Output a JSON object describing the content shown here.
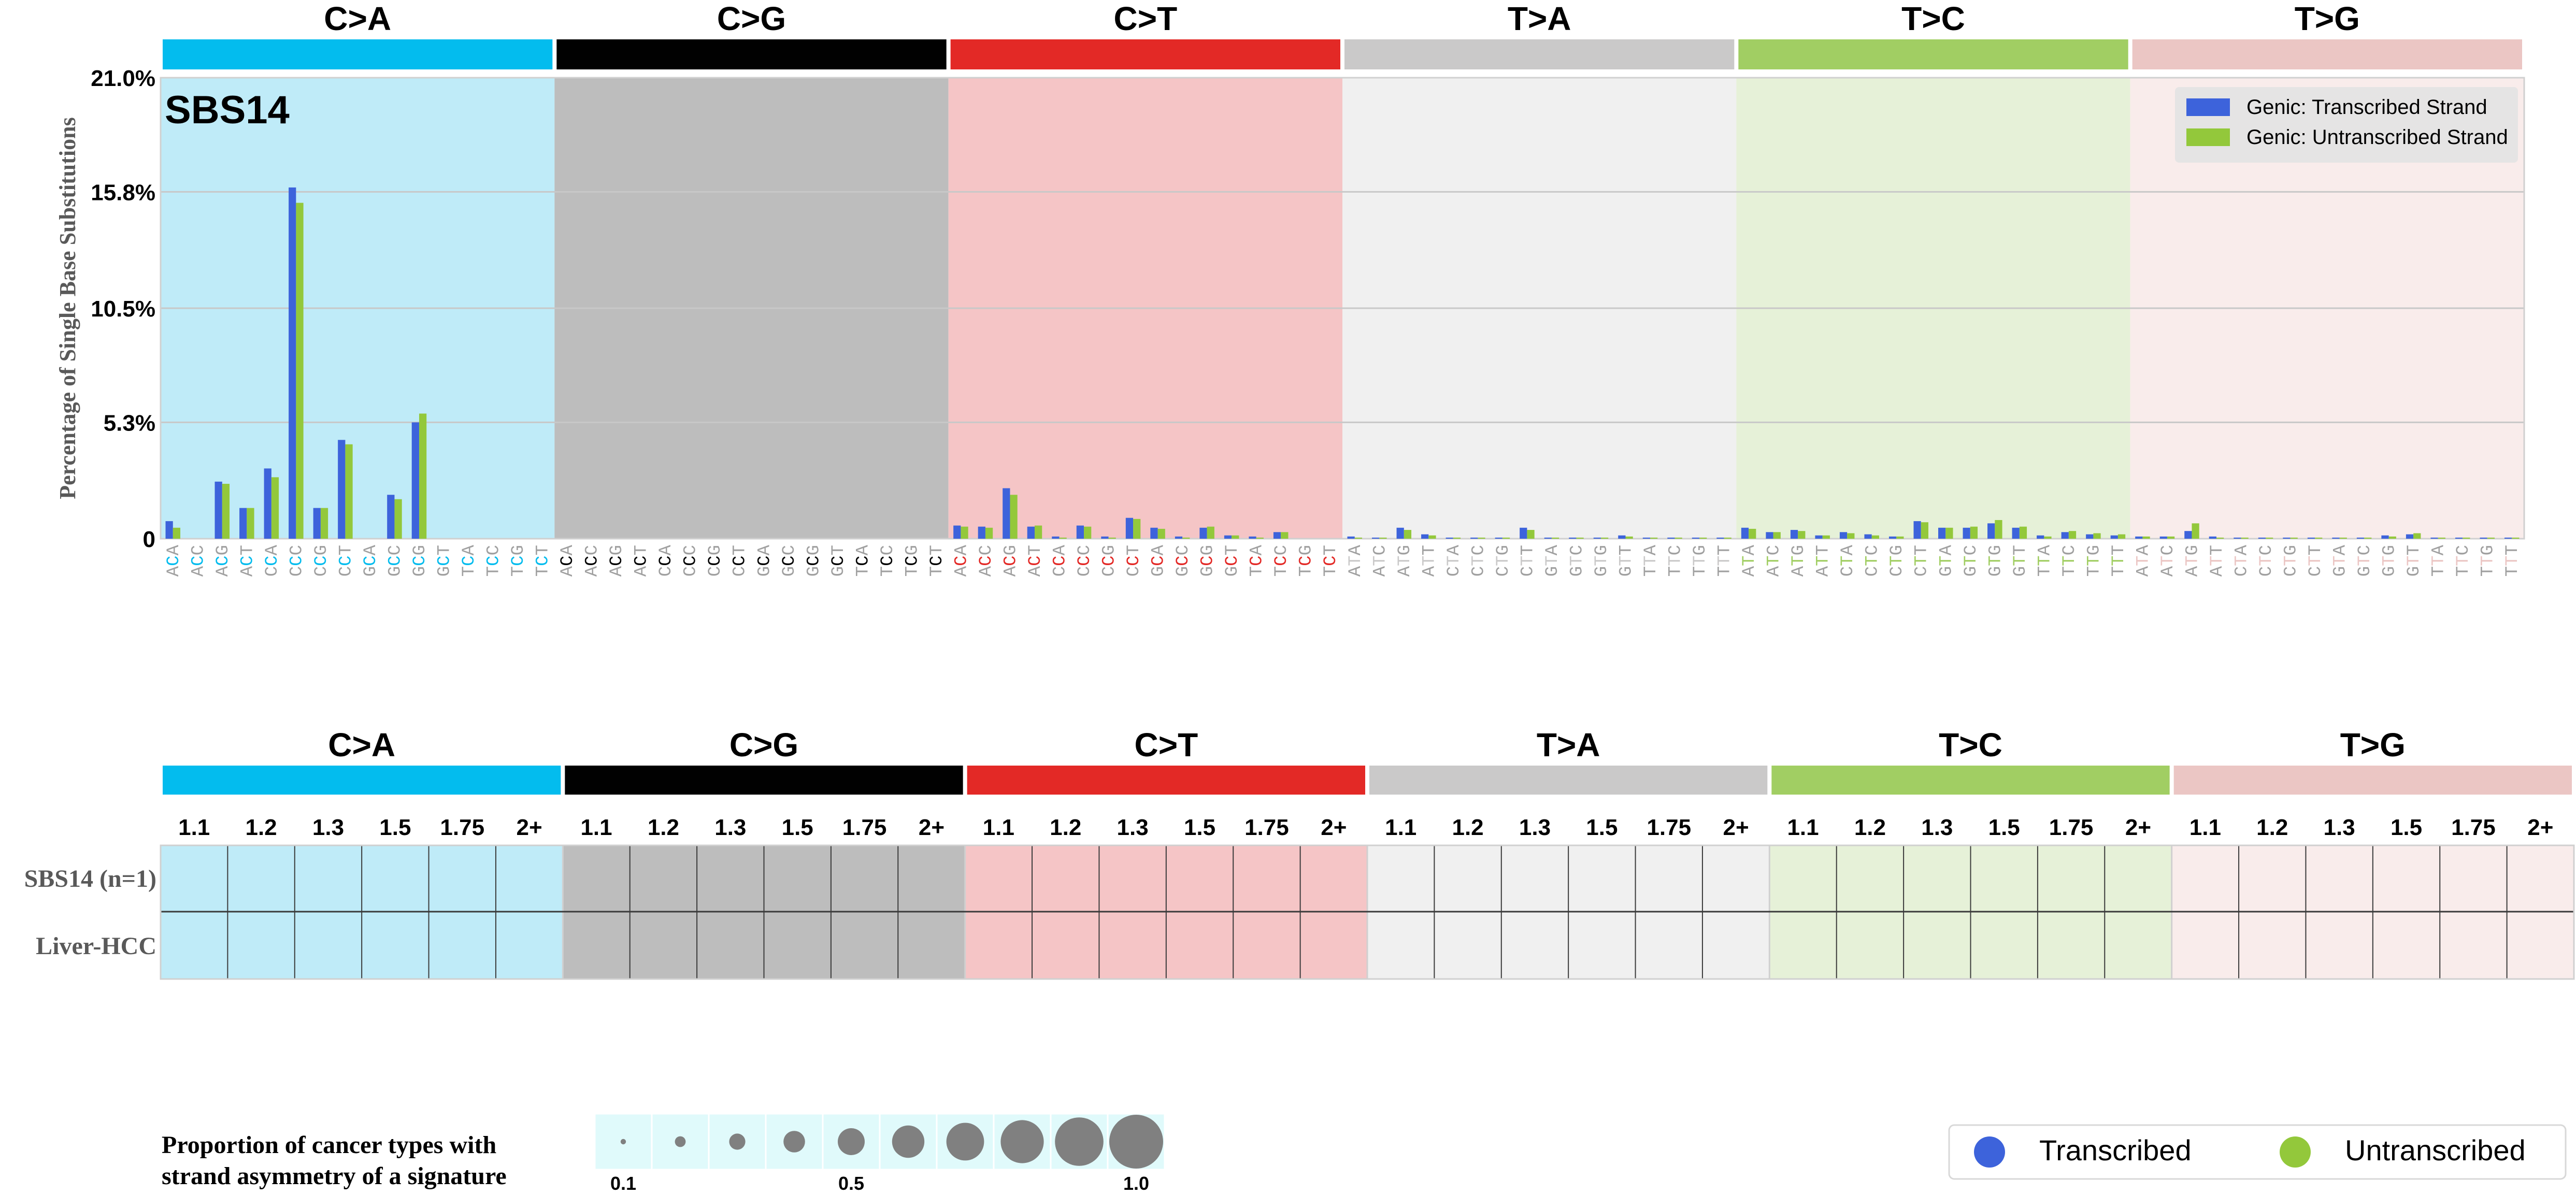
{
  "colors": {
    "mutation_types": [
      "#03BCEE",
      "#010101",
      "#E32926",
      "#CAC9C9",
      "#A1CE63",
      "#EBC6C4"
    ],
    "panel_backgrounds": [
      "#BFEBF8",
      "#BDBDBD",
      "#F5C5C6",
      "#F0F0F0",
      "#E6F1D8",
      "#F9ECEB"
    ],
    "transcribed": "#3D63DB",
    "untranscribed": "#93C83B",
    "grid": "#C8C8C8",
    "bubble": "#808080",
    "scale_bg": "#E0FAFB"
  },
  "chart_data": [
    {
      "type": "bar",
      "title": "SBS14",
      "ylabel": "Percentage of Single Base Substitutions",
      "ylim": [
        0,
        21.0
      ],
      "yticks": [
        "0",
        "5.3%",
        "10.5%",
        "15.8%",
        "21.0%"
      ],
      "ytick_values": [
        0,
        5.3,
        10.5,
        15.8,
        21.0
      ],
      "grid": true,
      "legend_position": "top-right",
      "mutation_types": [
        "C>A",
        "C>G",
        "C>T",
        "T>A",
        "T>C",
        "T>G"
      ],
      "x_labels": [
        "ACA",
        "ACC",
        "ACG",
        "ACT",
        "CCA",
        "CCC",
        "CCG",
        "CCT",
        "GCA",
        "GCC",
        "GCG",
        "GCT",
        "TCA",
        "TCC",
        "TCG",
        "TCT"
      ],
      "x_labels_T": [
        "ATA",
        "ATC",
        "ATG",
        "ATT",
        "CTA",
        "CTC",
        "CTG",
        "CTT",
        "GTA",
        "GTC",
        "GTG",
        "GTT",
        "TTA",
        "TTC",
        "TTG",
        "TTT"
      ],
      "series": [
        {
          "name": "Genic: Transcribed Strand",
          "values": [
            0.8,
            0.0,
            2.6,
            1.4,
            3.2,
            16.0,
            1.4,
            4.5,
            0.0,
            2.0,
            5.3,
            0.0,
            0.0,
            0.0,
            0.0,
            0.0,
            0,
            0,
            0,
            0,
            0,
            0,
            0,
            0,
            0,
            0,
            0,
            0,
            0,
            0,
            0,
            0,
            0.6,
            0.55,
            2.3,
            0.55,
            0.1,
            0.6,
            0.1,
            0.95,
            0.5,
            0.1,
            0.5,
            0.15,
            0.1,
            0.3,
            0.0,
            0.0,
            0.1,
            0.05,
            0.5,
            0.2,
            0.05,
            0.05,
            0.05,
            0.5,
            0.05,
            0.05,
            0.05,
            0.15,
            0.05,
            0.05,
            0.05,
            0.05,
            0.5,
            0.3,
            0.4,
            0.15,
            0.3,
            0.2,
            0.1,
            0.8,
            0.5,
            0.5,
            0.7,
            0.5,
            0.15,
            0.3,
            0.2,
            0.15,
            0.1,
            0.1,
            0.35,
            0.1,
            0.05,
            0.05,
            0.05,
            0.05,
            0.05,
            0.05,
            0.15,
            0.2,
            0.05,
            0.05,
            0.05,
            0.05
          ]
        },
        {
          "name": "Genic: Untranscribed Strand",
          "values": [
            0.5,
            0.0,
            2.5,
            1.4,
            2.8,
            15.3,
            1.4,
            4.3,
            0.0,
            1.8,
            5.7,
            0.0,
            0.0,
            0.0,
            0.0,
            0.0,
            0,
            0,
            0,
            0,
            0,
            0,
            0,
            0,
            0,
            0,
            0,
            0,
            0,
            0,
            0,
            0,
            0.55,
            0.5,
            2.0,
            0.6,
            0.05,
            0.55,
            0.05,
            0.9,
            0.45,
            0.05,
            0.55,
            0.15,
            0.05,
            0.3,
            0.0,
            0.0,
            0.05,
            0.05,
            0.4,
            0.15,
            0.05,
            0.05,
            0.05,
            0.4,
            0.05,
            0.05,
            0.05,
            0.1,
            0.05,
            0.05,
            0.05,
            0.05,
            0.45,
            0.3,
            0.35,
            0.15,
            0.25,
            0.15,
            0.1,
            0.75,
            0.5,
            0.55,
            0.85,
            0.55,
            0.1,
            0.35,
            0.25,
            0.2,
            0.1,
            0.1,
            0.7,
            0.05,
            0.05,
            0.05,
            0.05,
            0.05,
            0.05,
            0.05,
            0.1,
            0.25,
            0.05,
            0.05,
            0.05,
            0.05
          ]
        }
      ]
    },
    {
      "type": "heatmap",
      "mutation_types": [
        "C>A",
        "C>G",
        "C>T",
        "T>A",
        "T>C",
        "T>G"
      ],
      "column_labels": [
        "1.1",
        "1.2",
        "1.3",
        "1.5",
        "1.75",
        "2+"
      ],
      "rows": [
        "SBS14 (n=1)",
        "Liver-HCC"
      ],
      "values": "empty"
    }
  ],
  "scale_legend": {
    "title_line1": "Proportion of cancer types with",
    "title_line2": "strand asymmetry of a signature",
    "proportions": [
      0.1,
      0.2,
      0.3,
      0.4,
      0.5,
      0.6,
      0.7,
      0.8,
      0.9,
      1.0
    ],
    "tick_labels": [
      "0.1",
      "0.5",
      "1.0"
    ]
  },
  "strand_legend": {
    "items": [
      {
        "label": "Transcribed",
        "color": "#3D63DB"
      },
      {
        "label": "Untranscribed",
        "color": "#93C83B"
      }
    ]
  }
}
